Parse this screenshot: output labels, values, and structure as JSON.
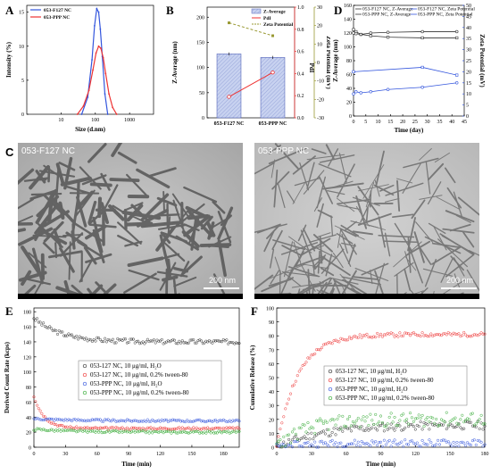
{
  "panels": {
    "A": {
      "label": "A"
    },
    "B": {
      "label": "B"
    },
    "C": {
      "label": "C",
      "left_title": "053-F127 NC",
      "right_title": "053-PPP NC",
      "scale_left": "200 nm",
      "scale_right": "200 nm"
    },
    "D": {
      "label": "D"
    },
    "E": {
      "label": "E"
    },
    "F": {
      "label": "F"
    }
  },
  "colors": {
    "blue": "#3355dd",
    "red": "#ee3333",
    "olive": "#999933",
    "black": "#333333",
    "green": "#33aa33",
    "bar_fill": "#c8d2f0"
  },
  "chart_data": [
    {
      "id": "A",
      "type": "line",
      "xlabel": "Size (d.nm)",
      "ylabel": "Intensity (%)",
      "xscale": "log",
      "xlim": [
        1,
        5000
      ],
      "ylim": [
        0,
        16
      ],
      "xticks": [
        10,
        100,
        1000
      ],
      "yticks": [
        0,
        5,
        10,
        15
      ],
      "legend_position": "top-left",
      "series": [
        {
          "name": "053-F127 NC",
          "color": "#3355dd",
          "x": [
            40,
            60,
            80,
            95,
            110,
            125,
            140,
            160,
            190,
            230
          ],
          "y": [
            0,
            2.5,
            8,
            13,
            15.5,
            15,
            12.5,
            8.5,
            3,
            0
          ]
        },
        {
          "name": "053-PPP NC",
          "color": "#ee3333",
          "x": [
            30,
            45,
            65,
            85,
            105,
            125,
            145,
            170,
            200,
            250,
            320,
            420
          ],
          "y": [
            0,
            1.2,
            3.5,
            6.5,
            9,
            10,
            9.7,
            8.3,
            6,
            3,
            1,
            0
          ]
        }
      ]
    },
    {
      "id": "B",
      "type": "bar",
      "categories": [
        "053-F127 NC",
        "053-PPP NC"
      ],
      "ylabel": "Z-Average (nm)",
      "y2label": "PdI",
      "y3label": "Zeta Potential (mV)",
      "ylim": [
        0,
        220
      ],
      "yticks": [
        0,
        50,
        100,
        150,
        200
      ],
      "y2lim": [
        0,
        1.0
      ],
      "y2ticks": [
        0.0,
        0.2,
        0.4,
        0.6,
        0.8,
        1.0
      ],
      "y3lim": [
        -30,
        30
      ],
      "y3ticks": [
        -30,
        -20,
        -10,
        0,
        10,
        20,
        30
      ],
      "series": [
        {
          "name": "Z-Average",
          "type": "bar",
          "values": [
            127,
            120
          ],
          "errors": [
            3,
            3
          ]
        },
        {
          "name": "PdI",
          "type": "line",
          "axis": "y2",
          "color": "#ee3333",
          "values": [
            0.19,
            0.41
          ],
          "errors": [
            0.02,
            0.02
          ]
        },
        {
          "name": "Zeta Potential",
          "type": "line",
          "axis": "y3",
          "color": "#999933",
          "values": [
            21.5,
            14.5
          ],
          "errors": [
            0.5,
            0.5
          ]
        }
      ],
      "legend_position": "top-right"
    },
    {
      "id": "D",
      "type": "line",
      "xlabel": "Time (day)",
      "ylabel": "Z-Average (nm)",
      "y2label": "Zeta Potential (mV)",
      "xlim": [
        0,
        45
      ],
      "xticks": [
        0,
        5,
        10,
        15,
        20,
        25,
        30,
        35,
        40,
        45
      ],
      "ylim": [
        0,
        160
      ],
      "yticks": [
        0,
        20,
        40,
        60,
        80,
        100,
        120,
        140,
        160
      ],
      "y2lim": [
        0,
        50
      ],
      "y2ticks": [
        0,
        5,
        10,
        15,
        20,
        25,
        30,
        35,
        40,
        45,
        50
      ],
      "legend_position": "top",
      "series": [
        {
          "name": "053-F127 NC, Z-Average",
          "axis": "y",
          "color": "#333333",
          "marker": "square",
          "x": [
            0,
            1,
            3,
            7,
            14,
            28,
            42
          ],
          "y": [
            125,
            122,
            118,
            116,
            114,
            113,
            113
          ]
        },
        {
          "name": "053-PPP NC, Z-Average",
          "axis": "y",
          "color": "#333333",
          "marker": "circle",
          "x": [
            0,
            1,
            3,
            7,
            14,
            28,
            42
          ],
          "y": [
            120,
            119,
            118,
            120,
            121,
            122,
            122
          ]
        },
        {
          "name": "053-F127 NC, Zeta Potential",
          "axis": "y2",
          "color": "#3355dd",
          "marker": "square",
          "x": [
            0,
            28,
            42
          ],
          "y": [
            20,
            22,
            18.5
          ]
        },
        {
          "name": "053-PPP NC, Zeta Potential",
          "axis": "y2",
          "color": "#3355dd",
          "marker": "circle",
          "x": [
            0,
            1,
            3,
            7,
            14,
            28,
            42
          ],
          "y": [
            10,
            11,
            10.5,
            11,
            12,
            13,
            15
          ]
        }
      ]
    },
    {
      "id": "E",
      "type": "scatter",
      "xlabel": "Time (min)",
      "ylabel": "Derived Count Rate (kcps)",
      "xlim": [
        0,
        195
      ],
      "xticks": [
        0,
        30,
        60,
        90,
        120,
        150,
        180
      ],
      "ylim": [
        0,
        185
      ],
      "yticks": [
        0,
        20,
        40,
        60,
        80,
        100,
        120,
        140,
        160,
        180
      ],
      "legend_position": "center",
      "series": [
        {
          "name": "053-127 NC, 10 μg/ml, H₂O",
          "color": "#333333",
          "model": {
            "form": "exp_decay",
            "start": 172,
            "plateau": 140,
            "tau": 25,
            "noise": 3
          }
        },
        {
          "name": "053-127 NC, 10 μg/ml, 0.2% tween-80",
          "color": "#ee3333",
          "model": {
            "form": "exp_decay",
            "start": 68,
            "plateau": 25,
            "tau": 10,
            "noise": 1.5
          }
        },
        {
          "name": "053-PPP NC, 10 μg/ml, H₂O",
          "color": "#3355dd",
          "model": {
            "form": "exp_decay",
            "start": 38,
            "plateau": 35,
            "tau": 40,
            "noise": 1.5
          }
        },
        {
          "name": "053-PPP NC, 10 μg/ml, 0.2% tween-80",
          "color": "#33aa33",
          "model": {
            "form": "exp_decay",
            "start": 24,
            "plateau": 20,
            "tau": 40,
            "noise": 1.5
          }
        }
      ]
    },
    {
      "id": "F",
      "type": "scatter",
      "xlabel": "Time (min)",
      "ylabel": "Cumulative Release (%)",
      "xlim": [
        0,
        180
      ],
      "xticks": [
        0,
        30,
        60,
        90,
        120,
        150,
        180
      ],
      "ylim": [
        0,
        100
      ],
      "yticks": [
        0,
        10,
        20,
        30,
        40,
        50,
        60,
        70,
        80,
        90,
        100
      ],
      "legend_position": "center",
      "series": [
        {
          "name": "053-127 NC, 10 μg/ml, H₂O",
          "color": "#333333",
          "model": {
            "form": "saturating",
            "start": 0,
            "plateau": 16,
            "tau": 40,
            "noise": 3
          }
        },
        {
          "name": "053-127 NC, 10 μg/ml, 0.2% tween-80",
          "color": "#ee3333",
          "model": {
            "form": "saturating",
            "start": 0,
            "plateau": 81,
            "tau": 18,
            "noise": 1.5
          }
        },
        {
          "name": "053-PPP NC, 10 μg/ml, H₂O",
          "color": "#3355dd",
          "model": {
            "form": "saturating",
            "start": 0,
            "plateau": 3,
            "tau": 20,
            "noise": 2.5
          }
        },
        {
          "name": "053-PPP NC, 10 μg/ml, 0.2% tween-80",
          "color": "#33aa33",
          "model": {
            "form": "saturating",
            "start": 0,
            "plateau": 20,
            "tau": 25,
            "noise": 5
          }
        }
      ]
    }
  ]
}
